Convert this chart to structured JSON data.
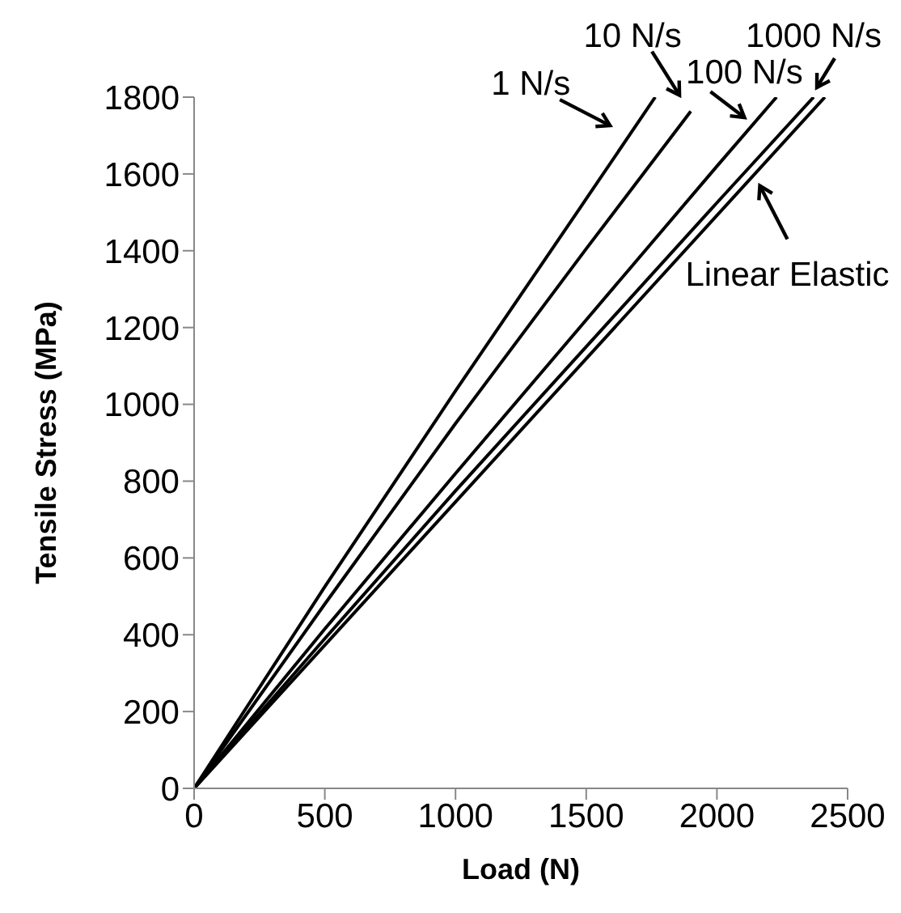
{
  "chart_data": {
    "type": "line",
    "xlabel": "Load (N)",
    "ylabel": "Tensile Stress (MPa)",
    "xlim": [
      0,
      2500
    ],
    "ylim": [
      0,
      1800
    ],
    "xticks": [
      0,
      500,
      1000,
      1500,
      2000,
      2500
    ],
    "yticks": [
      0,
      200,
      400,
      600,
      800,
      1000,
      1200,
      1400,
      1600,
      1800
    ],
    "grid": false,
    "marker": "none",
    "line_style": "solid",
    "series": [
      {
        "color": "#000000",
        "x": [
          0,
          500,
          1000,
          1500,
          1764
        ],
        "values": [
          0,
          525,
          1035,
          1535,
          1800
        ]
      },
      {
        "color": "#000000",
        "x": [
          0,
          500,
          1000,
          1500,
          1900
        ],
        "values": [
          0,
          480,
          950,
          1405,
          1763
        ]
      },
      {
        "color": "#000000",
        "x": [
          0,
          500,
          1000,
          1500,
          2000,
          2228
        ],
        "values": [
          0,
          415,
          820,
          1220,
          1620,
          1800
        ]
      },
      {
        "color": "#000000",
        "x": [
          0,
          500,
          1000,
          1500,
          2000,
          2370
        ],
        "values": [
          0,
          390,
          775,
          1150,
          1525,
          1800
        ]
      },
      {
        "color": "#000000",
        "x": [
          0,
          2413
        ],
        "values": [
          0,
          1800
        ]
      }
    ],
    "annotations": [
      {
        "text": "1 N/s",
        "x": 1690,
        "y": 1726
      },
      {
        "text": "10 N/s",
        "x": 1900,
        "y": 1763
      },
      {
        "text": "100 N/s",
        "x": 2161,
        "y": 1747
      },
      {
        "text": "1000 N/s",
        "x": 2370,
        "y": 1800
      },
      {
        "text": "Linear Elastic",
        "x": 2121,
        "y": 1582
      }
    ]
  }
}
